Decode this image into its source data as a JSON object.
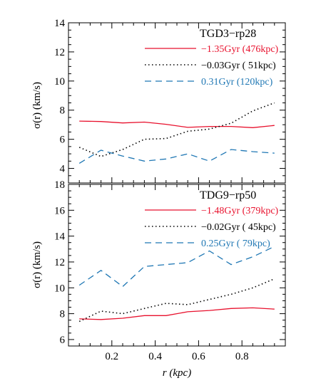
{
  "figure": {
    "xlabel": "r (kpc)",
    "ylabel": "σ(r)  (km/s)"
  },
  "colors": {
    "red": "#e8112d",
    "black": "#000000",
    "blue": "#1f77b4",
    "frame": "#000000"
  },
  "chart_data": [
    {
      "type": "line",
      "title": "TGD3−rp28",
      "xlim": [
        0.0,
        1.0
      ],
      "ylim": [
        3.0,
        14.0
      ],
      "xticks": [
        0.2,
        0.4,
        0.6,
        0.8
      ],
      "yticks": [
        4,
        6,
        8,
        10,
        12,
        14
      ],
      "legend": "top-right",
      "x": [
        0.05,
        0.15,
        0.25,
        0.35,
        0.45,
        0.55,
        0.65,
        0.75,
        0.85,
        0.95
      ],
      "series": [
        {
          "name": "−1.35Gyr (476kpc)",
          "color": "#e8112d",
          "style": "solid",
          "values": [
            7.25,
            7.22,
            7.12,
            7.18,
            7.03,
            6.82,
            6.88,
            6.88,
            6.8,
            6.95
          ]
        },
        {
          "name": "−0.03Gyr ( 51kpc)",
          "color": "#000000",
          "style": "dotted",
          "values": [
            5.45,
            4.82,
            5.3,
            6.0,
            6.05,
            6.55,
            6.7,
            7.1,
            7.95,
            8.5
          ]
        },
        {
          "name": "0.31Gyr (120kpc)",
          "color": "#1f77b4",
          "style": "dashed",
          "values": [
            4.35,
            5.25,
            4.85,
            4.5,
            4.65,
            5.0,
            4.5,
            5.3,
            5.15,
            5.05
          ]
        }
      ]
    },
    {
      "type": "line",
      "title": "TDG9−rp50",
      "xlim": [
        0.0,
        1.0
      ],
      "ylim": [
        5.5,
        18.0
      ],
      "xticks": [
        0.2,
        0.4,
        0.6,
        0.8
      ],
      "yticks": [
        6,
        8,
        10,
        12,
        14,
        16,
        18
      ],
      "legend": "top-right",
      "x": [
        0.05,
        0.15,
        0.25,
        0.35,
        0.45,
        0.55,
        0.65,
        0.75,
        0.85,
        0.95
      ],
      "series": [
        {
          "name": "−1.48Gyr (379kpc)",
          "color": "#e8112d",
          "style": "solid",
          "values": [
            7.6,
            7.55,
            7.65,
            7.85,
            7.85,
            8.15,
            8.25,
            8.4,
            8.45,
            8.35
          ]
        },
        {
          "name": "−0.02Gyr ( 45kpc)",
          "color": "#000000",
          "style": "dotted",
          "values": [
            7.4,
            8.2,
            8.0,
            8.4,
            8.8,
            8.7,
            9.1,
            9.5,
            10.0,
            10.7
          ]
        },
        {
          "name": "0.25Gyr ( 79kpc)",
          "color": "#1f77b4",
          "style": "dashed",
          "values": [
            10.2,
            11.35,
            10.1,
            11.65,
            11.8,
            11.95,
            12.85,
            11.8,
            12.4,
            13.2
          ]
        }
      ]
    }
  ]
}
